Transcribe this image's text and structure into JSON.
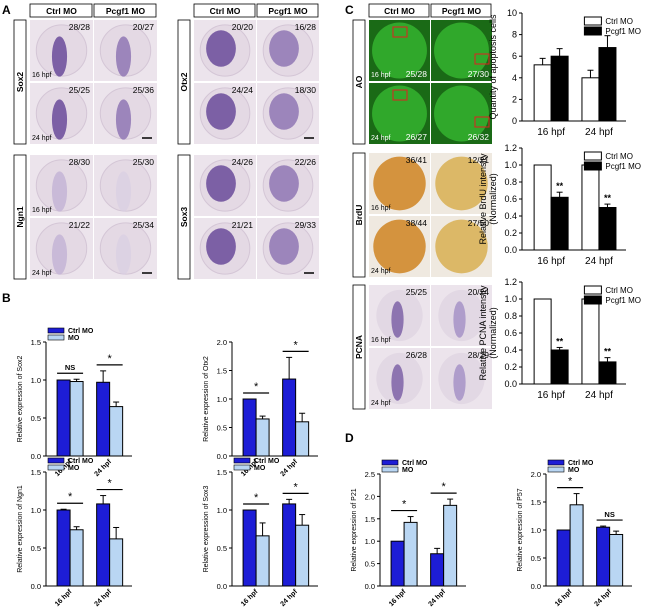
{
  "colors": {
    "ctrl_bar": "#1d1dd6",
    "mo_bar": "#b9d6f3",
    "white_bar": "#ffffff",
    "black_bar": "#000000",
    "ao_bg": "#1a6a16",
    "ao_fg": "#3fd23b",
    "brdu_ctrl": "#d08a2c",
    "brdu_mo": "#d9b35a",
    "ish_bg": "#ece4ec",
    "ish_dark": "#6a4a9a",
    "ish_light": "#c4b4d6"
  },
  "panelA": {
    "label": "A",
    "groups": [
      {
        "col1": "Ctrl MO",
        "col2": "Pcgf1 MO",
        "rows": [
          {
            "gene": "Sox2",
            "cells": [
              {
                "count": "28/28",
                "stage": "16 hpf",
                "intensity": "dark"
              },
              {
                "count": "20/27",
                "stage": "",
                "intensity": "mid"
              }
            ]
          },
          {
            "gene": "",
            "cells": [
              {
                "count": "25/25",
                "stage": "24 hpf",
                "intensity": "dark"
              },
              {
                "count": "25/36",
                "stage": "",
                "intensity": "mid"
              }
            ]
          }
        ]
      },
      {
        "col1": "Ctrl MO",
        "col2": "Pcgf1 MO",
        "rows": [
          {
            "gene": "Otx2",
            "cells": [
              {
                "count": "20/20",
                "stage": "",
                "intensity": "dark"
              },
              {
                "count": "16/28",
                "stage": "",
                "intensity": "mid"
              }
            ]
          },
          {
            "gene": "",
            "cells": [
              {
                "count": "24/24",
                "stage": "",
                "intensity": "dark"
              },
              {
                "count": "18/30",
                "stage": "",
                "intensity": "mid"
              }
            ]
          }
        ]
      },
      {
        "col1": "",
        "col2": "",
        "rows": [
          {
            "gene": "Ngn1",
            "cells": [
              {
                "count": "28/30",
                "stage": "16 hpf",
                "intensity": "light"
              },
              {
                "count": "25/30",
                "stage": "",
                "intensity": "faint"
              }
            ]
          },
          {
            "gene": "",
            "cells": [
              {
                "count": "21/22",
                "stage": "24 hpf",
                "intensity": "light"
              },
              {
                "count": "25/34",
                "stage": "",
                "intensity": "faint"
              }
            ]
          }
        ]
      },
      {
        "col1": "",
        "col2": "",
        "rows": [
          {
            "gene": "Sox3",
            "cells": [
              {
                "count": "24/26",
                "stage": "",
                "intensity": "dark"
              },
              {
                "count": "22/26",
                "stage": "",
                "intensity": "mid"
              }
            ]
          },
          {
            "gene": "",
            "cells": [
              {
                "count": "21/21",
                "stage": "",
                "intensity": "dark"
              },
              {
                "count": "29/33",
                "stage": "",
                "intensity": "mid"
              }
            ]
          }
        ]
      }
    ]
  },
  "panelC": {
    "label": "C",
    "col1": "Ctrl MO",
    "col2": "Pcgf1 MO",
    "rows": [
      {
        "stain": "AO",
        "cells": [
          [
            {
              "count": "25/28",
              "stage": "16 hpf"
            },
            {
              "count": "27/30",
              "stage": ""
            }
          ],
          [
            {
              "count": "26/27",
              "stage": "24 hpf"
            },
            {
              "count": "26/32",
              "stage": ""
            }
          ]
        ]
      },
      {
        "stain": "BrdU",
        "cells": [
          [
            {
              "count": "36/41",
              "stage": "16 hpf"
            },
            {
              "count": "12/21",
              "stage": ""
            }
          ],
          [
            {
              "count": "38/44",
              "stage": "24 hpf"
            },
            {
              "count": "27/50",
              "stage": ""
            }
          ]
        ]
      },
      {
        "stain": "PCNA",
        "cells": [
          [
            {
              "count": "25/25",
              "stage": "16 hpf"
            },
            {
              "count": "20/24",
              "stage": ""
            }
          ],
          [
            {
              "count": "26/28",
              "stage": "24 hpf"
            },
            {
              "count": "28/29",
              "stage": ""
            }
          ]
        ]
      }
    ]
  },
  "panelB": {
    "label": "B"
  },
  "panelD": {
    "label": "D"
  },
  "chart_data": [
    {
      "id": "B-Sox2",
      "type": "bar",
      "panel": "B",
      "categories": [
        "16 hpf",
        "24 hpf"
      ],
      "series": [
        {
          "name": "Ctrl MO",
          "values": [
            1.0,
            0.97
          ],
          "errors": [
            0.0,
            0.15
          ]
        },
        {
          "name": "MO",
          "values": [
            0.98,
            0.65
          ],
          "errors": [
            0.03,
            0.06
          ]
        }
      ],
      "ylabel": "Relative expression of Sox2",
      "ylim": [
        0,
        1.5
      ],
      "yticks": [
        "0.0",
        "0.5",
        "1.0",
        "1.5"
      ],
      "significance": [
        "NS",
        "*"
      ],
      "legend": true,
      "fill_style": "blue"
    },
    {
      "id": "B-Otx2",
      "type": "bar",
      "panel": "B",
      "categories": [
        "16 hpf",
        "24 hpf"
      ],
      "series": [
        {
          "name": "Ctrl MO",
          "values": [
            1.0,
            1.35
          ],
          "errors": [
            0.0,
            0.38
          ]
        },
        {
          "name": "MO",
          "values": [
            0.65,
            0.6
          ],
          "errors": [
            0.05,
            0.15
          ]
        }
      ],
      "ylabel": "Relative expression of Otx2",
      "ylim": [
        0,
        2.0
      ],
      "yticks": [
        "0.0",
        "0.5",
        "1.0",
        "1.5",
        "2.0"
      ],
      "significance": [
        "*",
        "*"
      ],
      "legend": false,
      "fill_style": "blue"
    },
    {
      "id": "B-Ngn1",
      "type": "bar",
      "panel": "B",
      "categories": [
        "16 hpf",
        "24 hpf"
      ],
      "series": [
        {
          "name": "Ctrl MO",
          "values": [
            1.0,
            1.08
          ],
          "errors": [
            0.01,
            0.11
          ]
        },
        {
          "name": "MO",
          "values": [
            0.74,
            0.62
          ],
          "errors": [
            0.04,
            0.15
          ]
        }
      ],
      "ylabel": "Relative expression of Ngn1",
      "ylim": [
        0,
        1.5
      ],
      "yticks": [
        "0.0",
        "0.5",
        "1.0",
        "1.5"
      ],
      "significance": [
        "*",
        "*"
      ],
      "legend": true,
      "fill_style": "blue"
    },
    {
      "id": "B-Sox3",
      "type": "bar",
      "panel": "B",
      "categories": [
        "16 hpf",
        "24 hpf"
      ],
      "series": [
        {
          "name": "Ctrl MO",
          "values": [
            1.0,
            1.08
          ],
          "errors": [
            0.0,
            0.06
          ]
        },
        {
          "name": "MO",
          "values": [
            0.66,
            0.8
          ],
          "errors": [
            0.17,
            0.14
          ]
        }
      ],
      "ylabel": "Relative expression of Sox3",
      "ylim": [
        0,
        1.5
      ],
      "yticks": [
        "0.0",
        "0.5",
        "1.0",
        "1.5"
      ],
      "significance": [
        "*",
        "*"
      ],
      "legend": true,
      "fill_style": "blue"
    },
    {
      "id": "C-apoptosis",
      "type": "bar",
      "panel": "C",
      "categories": [
        "16 hpf",
        "24 hpf"
      ],
      "series": [
        {
          "name": "Ctrl MO",
          "values": [
            5.2,
            4.0
          ],
          "errors": [
            0.6,
            0.7
          ]
        },
        {
          "name": "Pcgf1 MO",
          "values": [
            6.0,
            6.8
          ],
          "errors": [
            0.7,
            1.1
          ]
        }
      ],
      "ylabel": "Quantity of apoptosis cells",
      "ylim": [
        0,
        10
      ],
      "yticks": [
        "0",
        "2",
        "4",
        "6",
        "8",
        "10"
      ],
      "significance": [
        "",
        ""
      ],
      "legend": true,
      "fill_style": "bw"
    },
    {
      "id": "C-BrdU",
      "type": "bar",
      "panel": "C",
      "categories": [
        "16 hpf",
        "24 hpf"
      ],
      "series": [
        {
          "name": "Ctrl MO",
          "values": [
            1.0,
            1.0
          ],
          "errors": [
            0.0,
            0.0
          ]
        },
        {
          "name": "Pcgf1 MO",
          "values": [
            0.62,
            0.5
          ],
          "errors": [
            0.06,
            0.04
          ]
        }
      ],
      "ylabel": "Relative BrdU intensity\n(Normalized)",
      "ylim": [
        0,
        1.2
      ],
      "yticks": [
        "0.0",
        "0.2",
        "0.4",
        "0.6",
        "0.8",
        "1.0",
        "1.2"
      ],
      "significance": [
        "**",
        "**"
      ],
      "legend": true,
      "fill_style": "bw"
    },
    {
      "id": "C-PCNA",
      "type": "bar",
      "panel": "C",
      "categories": [
        "16 hpf",
        "24 hpf"
      ],
      "series": [
        {
          "name": "Ctrl MO",
          "values": [
            1.0,
            1.0
          ],
          "errors": [
            0.0,
            0.0
          ]
        },
        {
          "name": "Pcgf1 MO",
          "values": [
            0.4,
            0.26
          ],
          "errors": [
            0.03,
            0.05
          ]
        }
      ],
      "ylabel": "Relative PCNA intensity\n(Normalized)",
      "ylim": [
        0,
        1.2
      ],
      "yticks": [
        "0.0",
        "0.2",
        "0.4",
        "0.6",
        "0.8",
        "1.0",
        "1.2"
      ],
      "significance": [
        "**",
        "**"
      ],
      "legend": true,
      "fill_style": "bw"
    },
    {
      "id": "D-P21",
      "type": "bar",
      "panel": "D",
      "categories": [
        "16 hpf",
        "24 hpf"
      ],
      "series": [
        {
          "name": "Ctrl MO",
          "values": [
            1.0,
            0.72
          ],
          "errors": [
            0.0,
            0.12
          ]
        },
        {
          "name": "MO",
          "values": [
            1.42,
            1.8
          ],
          "errors": [
            0.13,
            0.14
          ]
        }
      ],
      "ylabel": "Relative expression of P21",
      "ylim": [
        0,
        2.5
      ],
      "yticks": [
        "0.0",
        "0.5",
        "1.0",
        "1.5",
        "2.0",
        "2.5"
      ],
      "significance": [
        "*",
        "*"
      ],
      "legend": true,
      "fill_style": "blue"
    },
    {
      "id": "D-P57",
      "type": "bar",
      "panel": "D",
      "categories": [
        "16 hpf",
        "24 hpf"
      ],
      "series": [
        {
          "name": "Ctrl MO",
          "values": [
            1.0,
            1.05
          ],
          "errors": [
            0.0,
            0.02
          ]
        },
        {
          "name": "MO",
          "values": [
            1.45,
            0.92
          ],
          "errors": [
            0.2,
            0.06
          ]
        }
      ],
      "ylabel": "Relative expression of P57",
      "ylim": [
        0,
        2.0
      ],
      "yticks": [
        "0.0",
        "0.5",
        "1.0",
        "1.5",
        "2.0"
      ],
      "significance": [
        "*",
        "NS"
      ],
      "legend": true,
      "fill_style": "blue"
    }
  ]
}
